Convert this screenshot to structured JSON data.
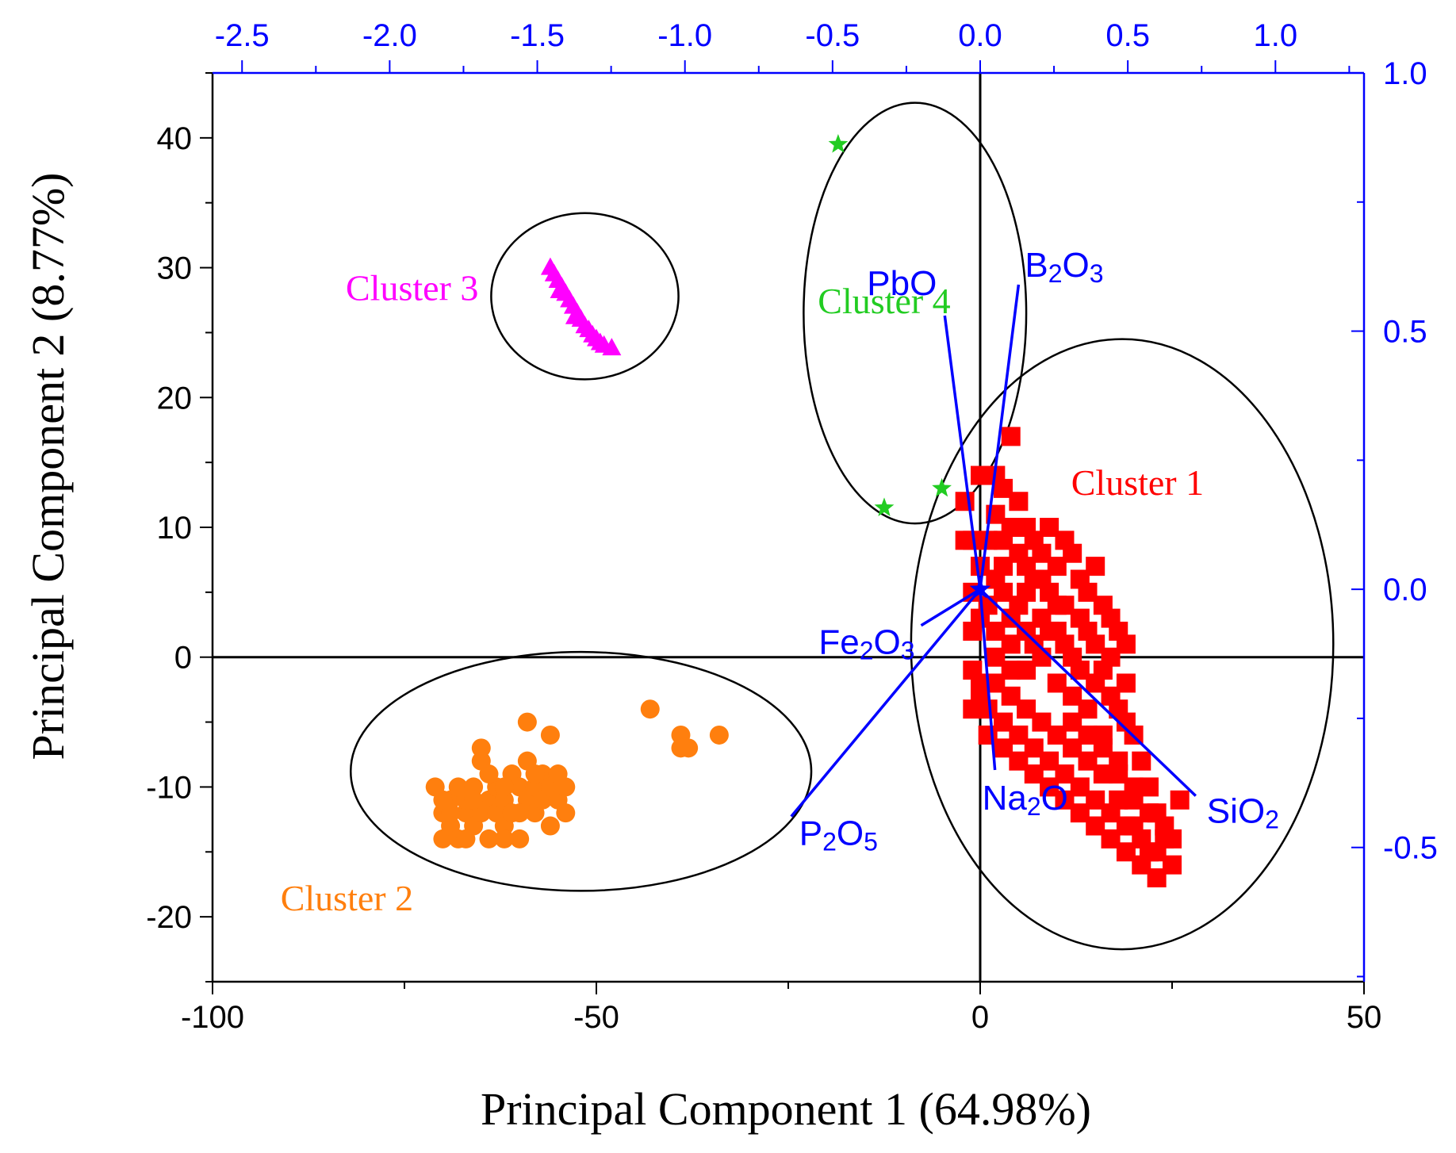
{
  "chart_data": {
    "type": "scatter",
    "title": "",
    "xlabel": "Principal Component 1 (64.98%)",
    "ylabel": "Principal Component 2 (8.77%)",
    "xlim": [
      -100,
      50
    ],
    "ylim": [
      -25,
      45
    ],
    "x_ticks": [
      -100,
      -50,
      0,
      50
    ],
    "y_ticks": [
      -20,
      -10,
      0,
      10,
      20,
      30,
      40
    ],
    "secondary_x": {
      "lim": [
        -2.6,
        1.3
      ],
      "ticks": [
        -2.5,
        -2.0,
        -1.5,
        -1.0,
        -0.5,
        0.0,
        0.5,
        1.0
      ],
      "color": "#0000ff"
    },
    "secondary_y": {
      "lim": [
        -0.76,
        1.0
      ],
      "ticks": [
        -0.5,
        0.0,
        0.5,
        1.0
      ],
      "color": "#0000ff"
    },
    "clusters": [
      {
        "name": "Cluster 1",
        "color": "#ff0000",
        "marker": "square",
        "label_pos": [
          20.5,
          12.5
        ],
        "ellipse": {
          "cx": 18.5,
          "cy": 1.0,
          "rx": 27.5,
          "ry": 23.5
        },
        "points": [
          [
            -2,
            12
          ],
          [
            -1,
            9
          ],
          [
            0,
            7
          ],
          [
            1,
            14
          ],
          [
            2,
            11
          ],
          [
            3,
            13
          ],
          [
            4,
            17
          ],
          [
            5,
            12
          ],
          [
            6,
            10
          ],
          [
            7,
            9
          ],
          [
            8,
            8
          ],
          [
            9,
            10
          ],
          [
            10,
            7
          ],
          [
            11,
            9
          ],
          [
            12,
            8
          ],
          [
            13,
            6
          ],
          [
            14,
            5
          ],
          [
            15,
            7
          ],
          [
            16,
            4
          ],
          [
            17,
            3
          ],
          [
            18,
            2
          ],
          [
            19,
            1
          ],
          [
            -1,
            5
          ],
          [
            0,
            3
          ],
          [
            1,
            4
          ],
          [
            2,
            6
          ],
          [
            3,
            5
          ],
          [
            4,
            3
          ],
          [
            5,
            4
          ],
          [
            6,
            2
          ],
          [
            7,
            1
          ],
          [
            8,
            3
          ],
          [
            9,
            2
          ],
          [
            10,
            4
          ],
          [
            11,
            1
          ],
          [
            12,
            0
          ],
          [
            13,
            -1
          ],
          [
            14,
            2
          ],
          [
            15,
            -2
          ],
          [
            16,
            -1
          ],
          [
            17,
            -3
          ],
          [
            18,
            -4
          ],
          [
            19,
            -5
          ],
          [
            20,
            -6
          ],
          [
            21,
            -8
          ],
          [
            22,
            -10
          ],
          [
            23,
            -12
          ],
          [
            24,
            -14
          ],
          [
            25,
            -16
          ],
          [
            26,
            -11
          ],
          [
            22,
            -15
          ],
          [
            20,
            -13
          ],
          [
            18,
            -11
          ],
          [
            16,
            -9
          ],
          [
            14,
            -8
          ],
          [
            12,
            -7
          ],
          [
            10,
            -6
          ],
          [
            8,
            -5
          ],
          [
            6,
            -4
          ],
          [
            4,
            -3
          ],
          [
            2,
            -2
          ],
          [
            0,
            -3
          ],
          [
            -1,
            -1
          ],
          [
            1,
            -4
          ],
          [
            3,
            -5
          ],
          [
            5,
            -6
          ],
          [
            7,
            -7
          ],
          [
            9,
            -8
          ],
          [
            11,
            -9
          ],
          [
            13,
            -10
          ],
          [
            15,
            -11
          ],
          [
            17,
            -12
          ],
          [
            19,
            -13
          ],
          [
            21,
            -14
          ],
          [
            23,
            -15
          ],
          [
            3,
            7
          ],
          [
            5,
            8
          ],
          [
            7,
            6
          ],
          [
            9,
            5
          ],
          [
            11,
            4
          ],
          [
            13,
            3
          ],
          [
            15,
            1
          ],
          [
            17,
            0
          ],
          [
            19,
            -2
          ],
          [
            6,
            -1
          ],
          [
            8,
            0
          ],
          [
            10,
            -2
          ],
          [
            12,
            -3
          ],
          [
            14,
            -4
          ],
          [
            16,
            -6
          ],
          [
            18,
            -8
          ],
          [
            20,
            -10
          ],
          [
            2,
            0
          ],
          [
            4,
            1
          ],
          [
            6,
            5
          ],
          [
            -2,
            9
          ],
          [
            -1,
            2
          ],
          [
            0,
            -2
          ],
          [
            2,
            2
          ],
          [
            4,
            -1
          ],
          [
            6,
            7
          ],
          [
            8,
            6
          ],
          [
            10,
            2
          ],
          [
            12,
            -5
          ],
          [
            14,
            -6
          ],
          [
            16,
            -7
          ],
          [
            18,
            -9
          ],
          [
            20,
            -11
          ],
          [
            22,
            -12
          ],
          [
            24,
            -13
          ],
          [
            21,
            -16
          ],
          [
            23,
            -17
          ],
          [
            25,
            -14
          ],
          [
            19,
            -15
          ],
          [
            17,
            -14
          ],
          [
            15,
            -13
          ],
          [
            13,
            -12
          ],
          [
            11,
            -11
          ],
          [
            9,
            -10
          ],
          [
            7,
            -9
          ],
          [
            5,
            -8
          ],
          [
            3,
            -7
          ],
          [
            1,
            -6
          ],
          [
            -1,
            -4
          ],
          [
            0,
            14
          ],
          [
            2,
            14
          ],
          [
            4,
            10
          ],
          [
            1,
            9
          ],
          [
            3,
            9
          ]
        ]
      },
      {
        "name": "Cluster 2",
        "color": "#ff7f0e",
        "marker": "circle",
        "label_pos": [
          -82.5,
          -19.5
        ],
        "ellipse": {
          "cx": -52,
          "cy": -8.8,
          "rx": 30,
          "ry": 9.2
        },
        "points": [
          [
            -71,
            -10
          ],
          [
            -70,
            -12
          ],
          [
            -70,
            -14
          ],
          [
            -69,
            -11
          ],
          [
            -69,
            -13
          ],
          [
            -68,
            -14
          ],
          [
            -68,
            -10
          ],
          [
            -67,
            -12
          ],
          [
            -67,
            -11
          ],
          [
            -66,
            -13
          ],
          [
            -66,
            -10
          ],
          [
            -65,
            -12
          ],
          [
            -65,
            -8
          ],
          [
            -64,
            -11
          ],
          [
            -64,
            -14
          ],
          [
            -63,
            -12
          ],
          [
            -63,
            -10
          ],
          [
            -62,
            -11
          ],
          [
            -62,
            -13
          ],
          [
            -61,
            -12
          ],
          [
            -61,
            -9
          ],
          [
            -60,
            -10
          ],
          [
            -60,
            -14
          ],
          [
            -59,
            -11
          ],
          [
            -59,
            -8
          ],
          [
            -58,
            -12
          ],
          [
            -58,
            -10
          ],
          [
            -57,
            -9
          ],
          [
            -57,
            -11
          ],
          [
            -56,
            -13
          ],
          [
            -56,
            -10
          ],
          [
            -55,
            -9
          ],
          [
            -55,
            -11
          ],
          [
            -54,
            -10
          ],
          [
            -54,
            -12
          ],
          [
            -59,
            -5
          ],
          [
            -56,
            -6
          ],
          [
            -65,
            -7
          ],
          [
            -62,
            -14
          ],
          [
            -60,
            -12
          ],
          [
            -66,
            -11
          ],
          [
            -69,
            -12
          ],
          [
            -70,
            -11
          ],
          [
            -62,
            -10
          ],
          [
            -58,
            -9
          ],
          [
            -64,
            -9
          ],
          [
            -67,
            -14
          ],
          [
            -43,
            -4
          ],
          [
            -39,
            -6
          ],
          [
            -38,
            -7
          ],
          [
            -39,
            -7
          ],
          [
            -34,
            -6
          ]
        ]
      },
      {
        "name": "Cluster 3",
        "color": "#ff00ff",
        "marker": "triangle",
        "label_pos": [
          -74,
          27.5
        ],
        "ellipse": {
          "cx": -51.5,
          "cy": 27.8,
          "rx": 12.2,
          "ry": 6.4
        },
        "points": [
          [
            -56,
            30
          ],
          [
            -55.5,
            29.5
          ],
          [
            -55,
            29
          ],
          [
            -54.5,
            28.5
          ],
          [
            -54,
            28
          ],
          [
            -53.5,
            27.5
          ],
          [
            -53,
            27
          ],
          [
            -52.5,
            26.5
          ],
          [
            -52,
            26
          ],
          [
            -51.5,
            25.5
          ],
          [
            -51,
            25.2
          ],
          [
            -50.5,
            24.8
          ],
          [
            -50,
            24.5
          ],
          [
            -49.5,
            24.2
          ],
          [
            -49,
            24
          ],
          [
            -48,
            23.8
          ],
          [
            -54.8,
            28.2
          ],
          [
            -52.8,
            26.2
          ]
        ]
      },
      {
        "name": "Cluster 4",
        "color": "#22cc22",
        "marker": "star",
        "label_pos": [
          -12.5,
          26.5
        ],
        "ellipse": {
          "cx": -8.5,
          "cy": 26.5,
          "rx": 14.5,
          "ry": 16.2
        },
        "points": [
          [
            -18.5,
            39.5
          ],
          [
            -12.5,
            11.5
          ],
          [
            -5,
            13
          ]
        ]
      }
    ],
    "loadings": [
      {
        "name": "PbO",
        "sub_parts": [
          [
            "PbO",
            false
          ]
        ],
        "x": -0.12,
        "y": 0.53
      },
      {
        "name": "B2O3",
        "sub_parts": [
          [
            "B",
            false
          ],
          [
            "2",
            true
          ],
          [
            "O",
            false
          ],
          [
            "3",
            true
          ]
        ],
        "x": 0.13,
        "y": 0.59
      },
      {
        "name": "Fe2O3",
        "sub_parts": [
          [
            "Fe",
            false
          ],
          [
            "2",
            true
          ],
          [
            "O",
            false
          ],
          [
            "3",
            true
          ]
        ],
        "x": -0.2,
        "y": -0.07
      },
      {
        "name": "P2O5",
        "sub_parts": [
          [
            "P",
            false
          ],
          [
            "2",
            true
          ],
          [
            "O",
            false
          ],
          [
            "5",
            true
          ]
        ],
        "x": -0.64,
        "y": -0.44
      },
      {
        "name": "Na2O",
        "sub_parts": [
          [
            "Na",
            false
          ],
          [
            "2",
            true
          ],
          [
            "O",
            false
          ]
        ],
        "x": 0.05,
        "y": -0.35
      },
      {
        "name": "SiO2",
        "sub_parts": [
          [
            "SiO",
            false
          ],
          [
            "2",
            true
          ]
        ],
        "x": 0.73,
        "y": -0.4
      }
    ]
  }
}
